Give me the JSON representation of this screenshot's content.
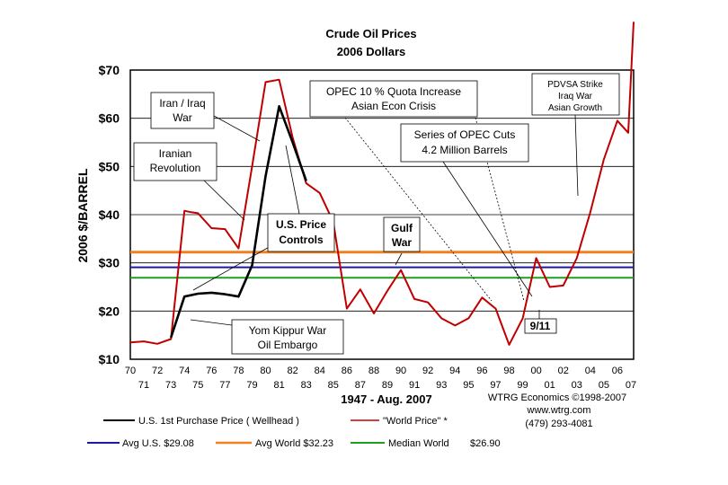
{
  "chart_data": {
    "type": "line",
    "title": "Crude Oil Prices",
    "subtitle": "2006 Dollars",
    "ylabel": "2006 $/BARREL",
    "xlabel": "1947 - Aug. 2007",
    "ylim": [
      10,
      70
    ],
    "xlim": [
      1970,
      2007.2
    ],
    "y_ticks": [
      "$10",
      "$20",
      "$30",
      "$40",
      "$50",
      "$60",
      "$70"
    ],
    "y_tick_values": [
      10,
      20,
      30,
      40,
      50,
      60,
      70
    ],
    "x_tick_labels_top": [
      "70",
      "72",
      "74",
      "76",
      "78",
      "80",
      "82",
      "84",
      "86",
      "88",
      "90",
      "92",
      "94",
      "96",
      "98",
      "00",
      "02",
      "04",
      "06"
    ],
    "x_tick_labels_bottom": [
      "71",
      "73",
      "75",
      "77",
      "79",
      "81",
      "83",
      "85",
      "87",
      "89",
      "91",
      "93",
      "95",
      "97",
      "99",
      "01",
      "03",
      "05",
      "07"
    ],
    "series": [
      {
        "name": "U.S. 1st Purchase Price ( Wellhead )",
        "color": "#000000",
        "x": [
          1973,
          1974,
          1975,
          1976,
          1977,
          1978,
          1979,
          1980,
          1981,
          1982,
          1983
        ],
        "y": [
          14.5,
          23,
          23.6,
          23.8,
          23.5,
          23,
          29.5,
          48,
          62.5,
          55,
          47
        ]
      },
      {
        "name": "\"World Price\" *",
        "color": "#c00000",
        "x": [
          1970,
          1971,
          1972,
          1973,
          1974,
          1974.5,
          1975,
          1976,
          1977,
          1978,
          1979,
          1980,
          1981,
          1982,
          1983,
          1984,
          1985,
          1986,
          1987,
          1988,
          1989,
          1990,
          1991,
          1992,
          1993,
          1994,
          1995,
          1996,
          1997,
          1998,
          1999,
          2000,
          2001,
          2002,
          2003,
          2004,
          2005,
          2006,
          2006.8,
          2007.2
        ],
        "y": [
          13.5,
          13.7,
          13.2,
          14.2,
          40.8,
          40.5,
          40.3,
          37.2,
          37,
          33,
          50,
          67.5,
          68,
          56,
          46.5,
          44.5,
          38.5,
          20.5,
          24.5,
          19.5,
          24.2,
          28.5,
          22.5,
          21.8,
          18.5,
          17,
          18.5,
          22.8,
          20.5,
          13,
          18.5,
          31,
          25,
          25.3,
          31,
          40.5,
          51.5,
          59.5,
          57,
          80
        ]
      }
    ],
    "reference_lines": [
      {
        "name": "Avg U.S. $29.08",
        "value": 29.08,
        "color": "#1a1aa6"
      },
      {
        "name": "Avg World $32.23",
        "value": 32.23,
        "color": "#f08020"
      },
      {
        "name": "Median World $26.90",
        "value": 26.9,
        "color": "#20a020"
      }
    ]
  },
  "annotations": {
    "iran_iraq": [
      "Iran / Iraq",
      "War"
    ],
    "iranian_rev": [
      "Iranian",
      "Revolution"
    ],
    "us_price": [
      "U.S. Price",
      "Controls"
    ],
    "opec_quota": [
      "OPEC 10 % Quota Increase",
      "Asian Econ Crisis"
    ],
    "opec_cuts": [
      "Series of OPEC Cuts",
      "4.2 Million Barrels"
    ],
    "gulf_war": [
      "Gulf",
      "War"
    ],
    "pdvsa": [
      "PDVSA Strike",
      "Iraq War",
      "Asian Growth"
    ],
    "nine_eleven": "9/11",
    "yom_kippur": [
      "Yom Kippur War",
      "Oil Embargo"
    ]
  },
  "legend": {
    "us_first_purchase": "U.S. 1st Purchase Price ( Wellhead )",
    "world_price": "\"World Price\" *",
    "avg_us": "Avg U.S. $29.08",
    "avg_world": "Avg World $32.23",
    "median_world_label": "Median World",
    "median_world_value": "$26.90"
  },
  "footer": {
    "period": "1947 - Aug. 2007",
    "source": "WTRG Economics  ©1998-2007",
    "website": "www.wtrg.com",
    "phone": "(479) 293-4081"
  }
}
